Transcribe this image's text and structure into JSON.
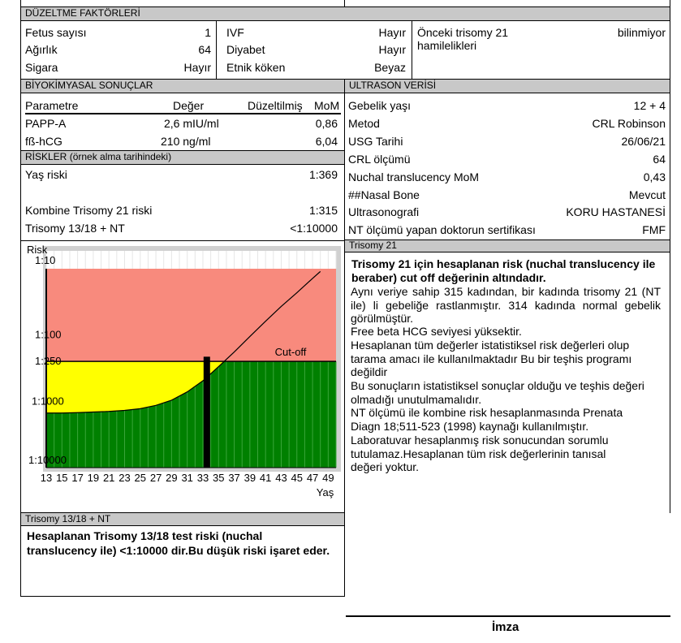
{
  "top_stub": "...",
  "correction": {
    "title": "DÜZELTME FAKTÖRLERİ",
    "fetus_label": "Fetus sayısı",
    "fetus_value": "1",
    "weight_label": "Ağırlık",
    "weight_value": "64",
    "smoking_label": "Sigara",
    "smoking_value": "Hayır",
    "ivf_label": "IVF",
    "ivf_value": "Hayır",
    "diabetes_label": "Diyabet",
    "diabetes_value": "Hayır",
    "ethnic_label": "Etnik köken",
    "ethnic_value": "Beyaz",
    "prev_label": "Önceki trisomy 21 hamilelikleri",
    "prev_value": "bilinmiyor"
  },
  "biochem": {
    "title": "BİYOKİMYASAL SONUÇLAR",
    "col_param": "Parametre",
    "col_value": "Değer",
    "col_corr": "Düzeltilmiş",
    "col_mom": "MoM",
    "rows": [
      {
        "param": "PAPP-A",
        "value": "2,6 mIU/ml",
        "mom": "0,86"
      },
      {
        "param": "fß-hCG",
        "value": "210 ng/ml",
        "mom": "6,04"
      }
    ]
  },
  "risks": {
    "title": "RİSKLER",
    "title_note": "(örnek alma tarihindeki)",
    "age_label": "Yaş riski",
    "age_value": "1:369",
    "combined_label": "Kombine Trisomy 21 riski",
    "combined_value": "1:315",
    "t1318_label": "Trisomy 13/18 + NT",
    "t1318_value": "<1:10000"
  },
  "ultrasound": {
    "title": "ULTRASON VERİSİ",
    "rows": [
      {
        "label": "Gebelik yaşı",
        "value": "12  +  4"
      },
      {
        "label": "Metod",
        "value": "CRL Robinson"
      },
      {
        "label": "USG Tarihi",
        "value": "26/06/21"
      },
      {
        "label": "CRL ölçümü",
        "value": "64"
      },
      {
        "label": "Nuchal translucency MoM",
        "value": "0,43"
      },
      {
        "label": "##Nasal Bone",
        "value": "Mevcut"
      },
      {
        "label": "Ultrasonografi",
        "value": "KORU HASTANESİ"
      },
      {
        "label": "NT ölçümü yapan doktorun sertifikası",
        "value": "FMF"
      }
    ]
  },
  "chart_data": {
    "type": "area",
    "ylabel": "Risk",
    "xlabel": "Yaş",
    "y_scale": "log",
    "y_ticks": [
      "1:10",
      "1:100",
      "1:250",
      "1:1000",
      "1:10000"
    ],
    "x_ticks": [
      "13",
      "15",
      "17",
      "19",
      "21",
      "23",
      "25",
      "27",
      "29",
      "31",
      "33",
      "35",
      "37",
      "39",
      "41",
      "43",
      "45",
      "47",
      "49"
    ],
    "cutoff_label": "Cut-off",
    "cutoff": 250,
    "ylim": [
      10,
      10000
    ],
    "xlim": [
      13,
      50
    ],
    "risk_curve": [
      {
        "age": 13,
        "risk_1_in": 1500
      },
      {
        "age": 15,
        "risk_1_in": 1500
      },
      {
        "age": 17,
        "risk_1_in": 1480
      },
      {
        "age": 19,
        "risk_1_in": 1450
      },
      {
        "age": 21,
        "risk_1_in": 1420
      },
      {
        "age": 23,
        "risk_1_in": 1370
      },
      {
        "age": 25,
        "risk_1_in": 1290
      },
      {
        "age": 27,
        "risk_1_in": 1150
      },
      {
        "age": 29,
        "risk_1_in": 960
      },
      {
        "age": 31,
        "risk_1_in": 720
      },
      {
        "age": 33,
        "risk_1_in": 490
      },
      {
        "age": 35,
        "risk_1_in": 300
      },
      {
        "age": 37,
        "risk_1_in": 180
      },
      {
        "age": 39,
        "risk_1_in": 105
      },
      {
        "age": 41,
        "risk_1_in": 62
      },
      {
        "age": 43,
        "risk_1_in": 37
      },
      {
        "age": 45,
        "risk_1_in": 23
      },
      {
        "age": 47,
        "risk_1_in": 14
      },
      {
        "age": 48,
        "risk_1_in": 11
      }
    ],
    "marker_age": 33.5,
    "marker_risk_1_in": 315,
    "colors": {
      "above_cutoff": "#f88a7d",
      "below_curve": "#ffff00",
      "low_risk": "#008000",
      "marker": "#000000",
      "frame": "#d0d0d0"
    }
  },
  "t21": {
    "title": "Trisomy 21",
    "bold_text": "Trisomy 21 için hesaplanan risk (nuchal translucency ile beraber) cut off değerinin altındadır.",
    "p1": "Aynı veriye sahip 315 kadından, bir kadında trisomy 21 (NT ile) li gebeliğe  rastlanmıştır.  314  kadında  normal gebelik görülmüştür.",
    "p2": "Free beta HCG seviyesi yüksektir.",
    "p3": "Hesaplanan tüm değerler istatistiksel risk değerleri olup tarama amacı ile kullanılmaktadır Bu bir teşhis programı değildir",
    "p4": "Bu sonuçların istatistiksel sonuçlar olduğu ve teşhis değeri olmadığı unutulmamalıdır.",
    "p5": "NT ölçümü ile  kombine risk hesaplanmasında Prenata Diagn 18;511-523 (1998) kaynağı kullanılmıştır.",
    "p6": "Laboratuvar hesaplanmış risk sonucundan sorumlu tutulamaz.Hesaplanan tüm risk değerlerinin  tanısal değeri yoktur."
  },
  "t1318": {
    "title": "Trisomy 13/18 + NT",
    "bold_text": "Hesaplanan Trisomy 13/18 test riski (nuchal translucency ile)  <1:10000 dir.Bu düşük riski işaret eder."
  },
  "signature_label": "İmza"
}
